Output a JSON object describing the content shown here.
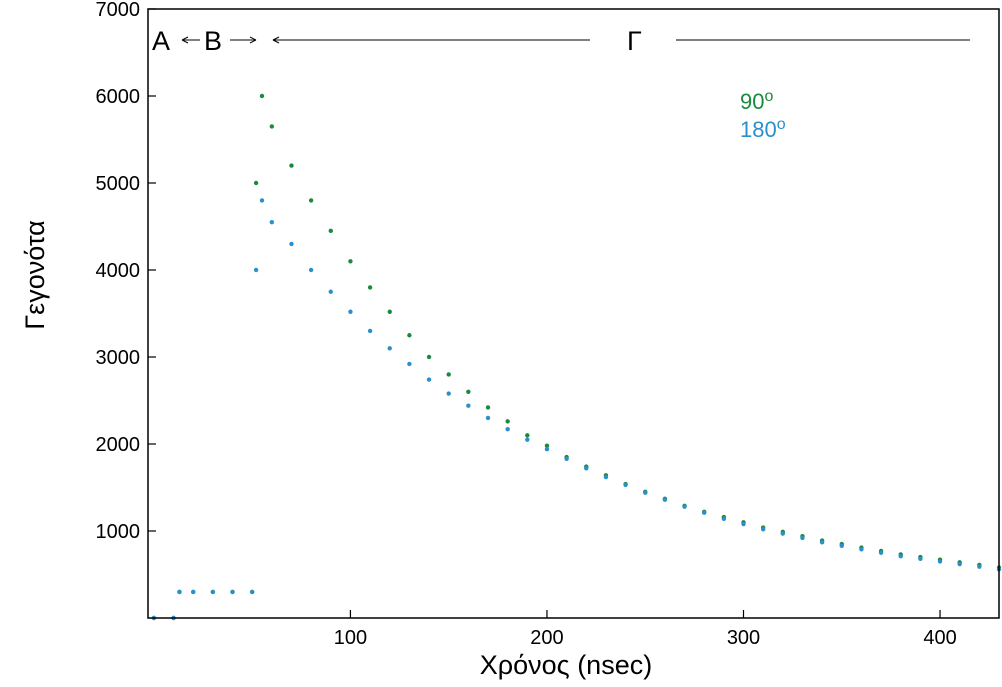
{
  "chart_data": {
    "type": "scatter",
    "xlabel": "Χρόνος (nsec)",
    "ylabel": "Γεγονότα",
    "xlim": [
      -3,
      430
    ],
    "ylim": [
      0,
      7000
    ],
    "x_ticks": [
      100,
      200,
      300,
      400
    ],
    "y_ticks": [
      1000,
      2000,
      3000,
      4000,
      5000,
      6000,
      7000
    ],
    "grid": false,
    "legend_position": "top-right",
    "regions": {
      "a": "A",
      "b": "B",
      "c": "Γ"
    },
    "legend": {
      "deg90": {
        "base": "90",
        "sup": "o",
        "color": "#1a8a3c"
      },
      "deg180": {
        "base": "180",
        "sup": "o",
        "color": "#2a90cc"
      }
    },
    "series": [
      {
        "name": "90o",
        "color": "#1a8a3c",
        "x": [
          0,
          10,
          13,
          20,
          30,
          40,
          50,
          52,
          55,
          60,
          70,
          80,
          90,
          100,
          110,
          120,
          130,
          140,
          150,
          160,
          170,
          180,
          190,
          200,
          210,
          220,
          230,
          240,
          250,
          260,
          270,
          280,
          290,
          300,
          310,
          320,
          330,
          340,
          350,
          360,
          370,
          380,
          390,
          400,
          410,
          420,
          430
        ],
        "y": [
          0,
          0,
          300,
          300,
          300,
          300,
          300,
          5000,
          6000,
          5650,
          5200,
          4800,
          4450,
          4100,
          3800,
          3520,
          3250,
          3000,
          2800,
          2600,
          2420,
          2260,
          2100,
          1980,
          1850,
          1740,
          1640,
          1540,
          1450,
          1370,
          1290,
          1220,
          1160,
          1100,
          1040,
          990,
          940,
          890,
          850,
          810,
          770,
          730,
          700,
          670,
          640,
          610,
          580
        ]
      },
      {
        "name": "180o",
        "color": "#2a90cc",
        "x": [
          0,
          10,
          13,
          20,
          30,
          40,
          50,
          52,
          55,
          60,
          70,
          80,
          90,
          100,
          110,
          120,
          130,
          140,
          150,
          160,
          170,
          180,
          190,
          200,
          210,
          220,
          230,
          240,
          250,
          260,
          270,
          280,
          290,
          300,
          310,
          320,
          330,
          340,
          350,
          360,
          370,
          380,
          390,
          400,
          410,
          420,
          430
        ],
        "y": [
          0,
          0,
          300,
          300,
          300,
          300,
          300,
          4000,
          4800,
          4550,
          4300,
          4000,
          3750,
          3520,
          3300,
          3100,
          2920,
          2740,
          2580,
          2440,
          2300,
          2170,
          2050,
          1940,
          1830,
          1720,
          1620,
          1530,
          1440,
          1360,
          1280,
          1210,
          1140,
          1080,
          1020,
          970,
          920,
          870,
          830,
          790,
          750,
          710,
          680,
          650,
          620,
          590,
          560
        ]
      }
    ]
  }
}
